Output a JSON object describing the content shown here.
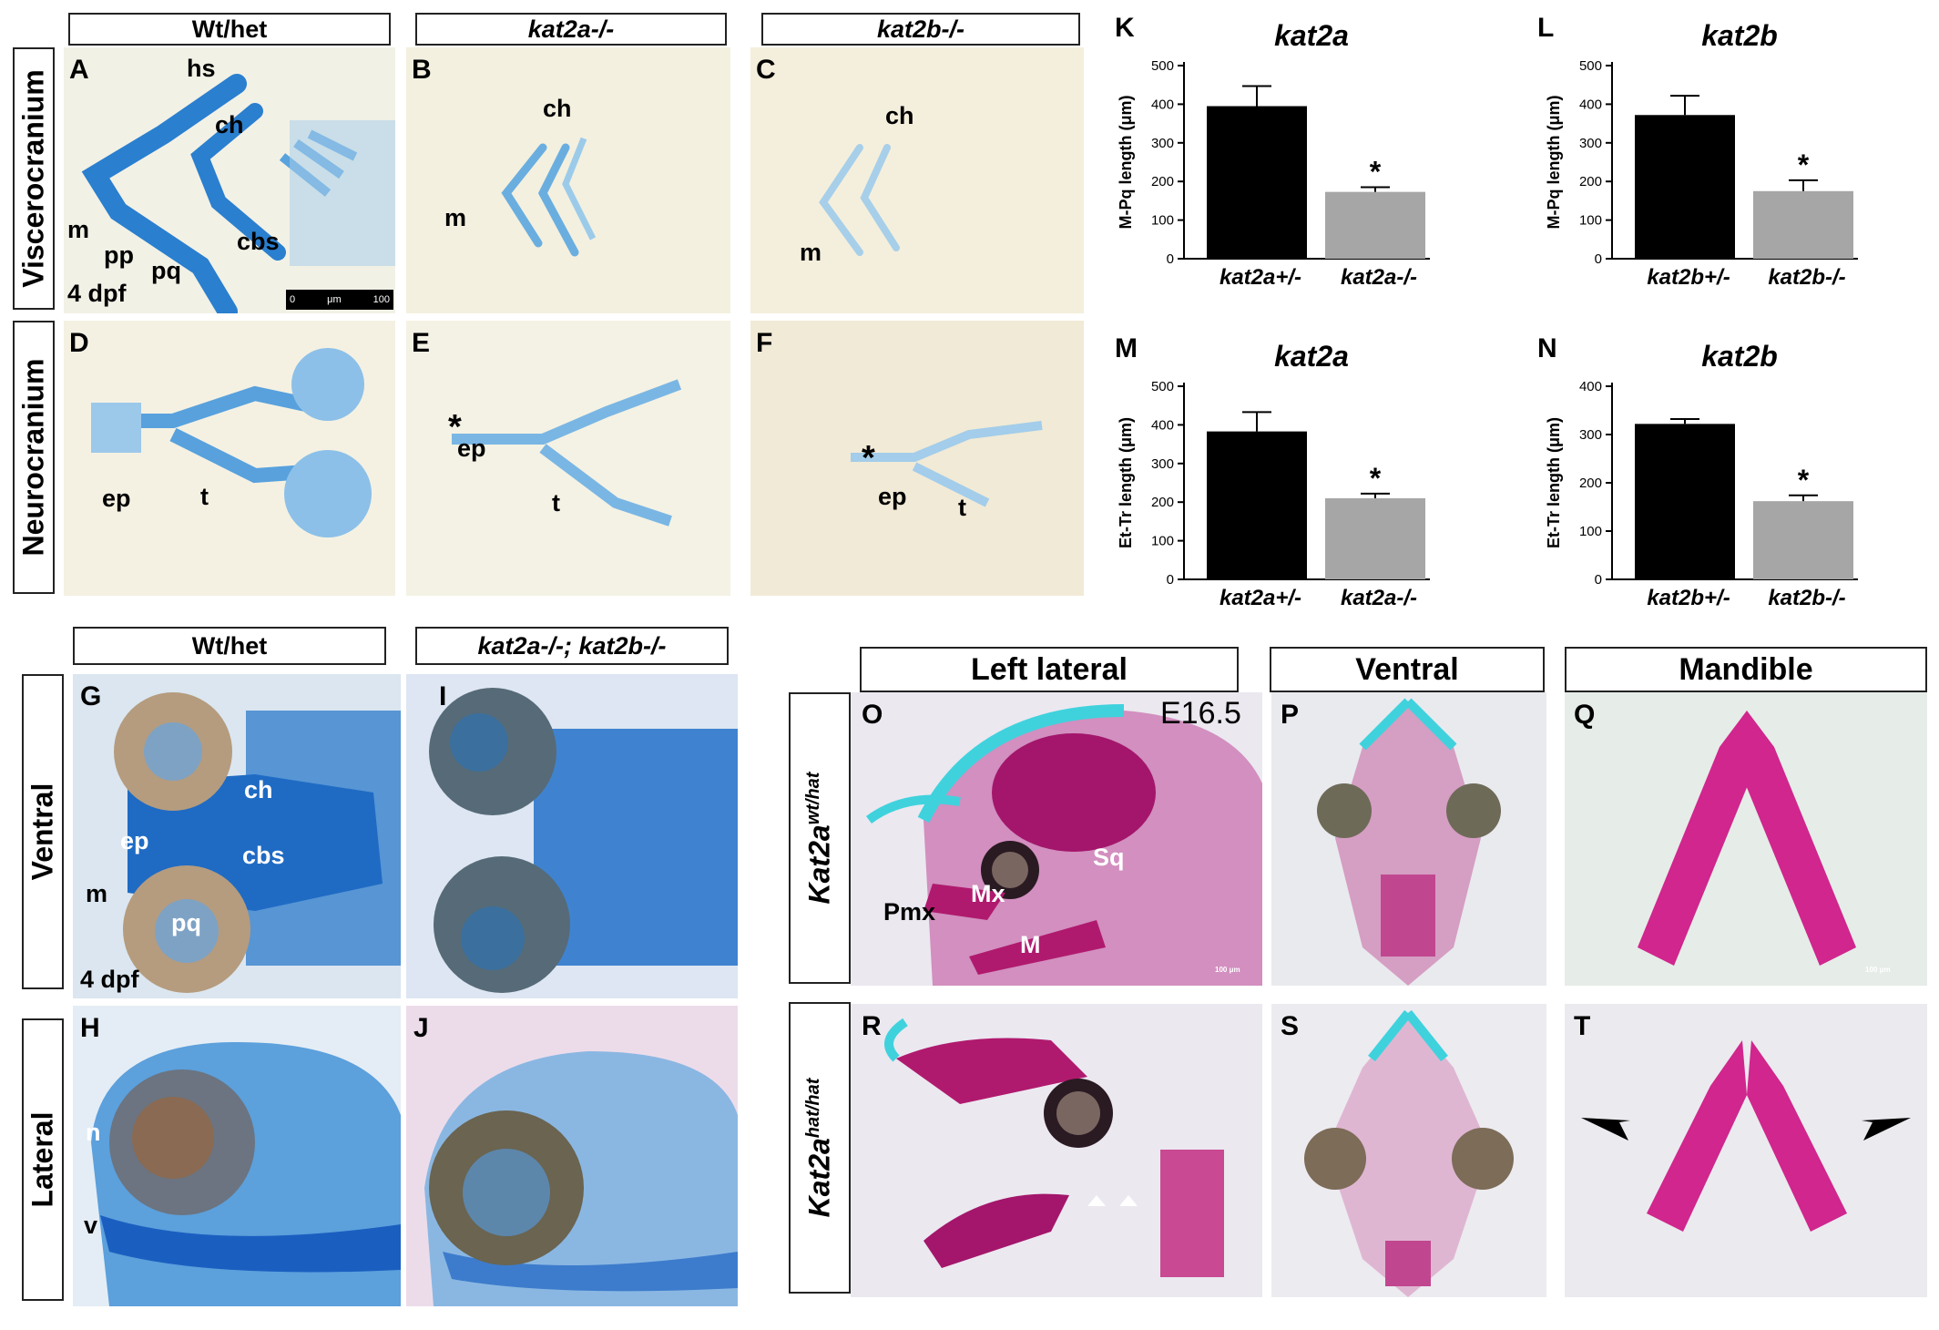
{
  "headers": {
    "wt_het_top": "Wt/het",
    "kat2a_top": "kat2a-/-",
    "kat2b_top": "kat2b-/-",
    "wt_het_mid": "Wt/het",
    "double_mutant": "kat2a-/-; kat2b-/-",
    "left_lateral": "Left lateral",
    "ventral_mouse": "Ventral",
    "mandible": "Mandible"
  },
  "row_labels": {
    "viscerocranium": "Viscerocranium",
    "neurocranium": "Neurocranium",
    "ventral": "Ventral",
    "lateral": "Lateral",
    "wt_prefix": "Kat2a",
    "wt_sup": "wt/hat",
    "mut_prefix": "Kat2a",
    "mut_sup": "hat/hat"
  },
  "panel_letters": {
    "A": "A",
    "B": "B",
    "C": "C",
    "D": "D",
    "E": "E",
    "F": "F",
    "G": "G",
    "H": "H",
    "I": "I",
    "J": "J",
    "K": "K",
    "L": "L",
    "M": "M",
    "N": "N",
    "O": "O",
    "P": "P",
    "Q": "Q",
    "R": "R",
    "S": "S",
    "T": "T"
  },
  "annotations": {
    "A_hs": "hs",
    "A_ch": "ch",
    "A_m": "m",
    "A_pp": "pp",
    "A_pq": "pq",
    "A_cbs": "cbs",
    "A_age": "4 dpf",
    "scale_0": "0",
    "scale_um": "μm",
    "scale_100": "100",
    "B_ch": "ch",
    "B_m": "m",
    "C_ch": "ch",
    "C_m": "m",
    "D_ep": "ep",
    "D_t": "t",
    "E_star": "*",
    "E_ep": "ep",
    "E_t": "t",
    "F_star": "*",
    "F_ep": "ep",
    "F_t": "t",
    "G_ch": "ch",
    "G_ep": "ep",
    "G_cbs": "cbs",
    "G_m": "m",
    "G_pq": "pq",
    "G_age": "4 dpf",
    "H_n": "n",
    "H_v": "v",
    "O_stage": "E16.5",
    "O_pmx": "Pmx",
    "O_mx": "Mx",
    "O_sq": "Sq",
    "O_M": "M",
    "O_scale": "100 μm",
    "Q_scale": "100 μm"
  },
  "colors": {
    "wt_bar": "#000000",
    "mut_bar": "#a6a6a6",
    "alcian_blue": "#2f86d0",
    "alizarin_red": "#c2307e",
    "zebrafish_bg": "#f1ecd8",
    "mouse_bg": "#ecebf0"
  },
  "chart_data": [
    {
      "id": "K",
      "type": "bar",
      "title": "kat2a",
      "categories": [
        "kat2a+/-",
        "kat2a-/-"
      ],
      "values": [
        395,
        173
      ],
      "errors": [
        52,
        12
      ],
      "ylabel": "M-Pq length (μm)",
      "ylim": [
        0,
        500
      ],
      "yticks": [
        0,
        100,
        200,
        300,
        400,
        500
      ],
      "significance": [
        "",
        "*"
      ]
    },
    {
      "id": "L",
      "type": "bar",
      "title": "kat2b",
      "categories": [
        "kat2b+/-",
        "kat2b-/-"
      ],
      "values": [
        372,
        175
      ],
      "errors": [
        50,
        28
      ],
      "ylabel": "M-Pq length (μm)",
      "ylim": [
        0,
        500
      ],
      "yticks": [
        0,
        100,
        200,
        300,
        400,
        500
      ],
      "significance": [
        "",
        "*"
      ]
    },
    {
      "id": "M",
      "type": "bar",
      "title": "kat2a",
      "categories": [
        "kat2a+/-",
        "kat2a-/-"
      ],
      "values": [
        383,
        210
      ],
      "errors": [
        50,
        12
      ],
      "ylabel": "Et-Tr length (μm)",
      "ylim": [
        0,
        500
      ],
      "yticks": [
        0,
        100,
        200,
        300,
        400,
        500
      ],
      "significance": [
        "",
        "*"
      ]
    },
    {
      "id": "N",
      "type": "bar",
      "title": "kat2b",
      "categories": [
        "kat2b+/-",
        "kat2b-/-"
      ],
      "values": [
        322,
        162
      ],
      "errors": [
        10,
        12
      ],
      "ylabel": "Et-Tr length (μm)",
      "ylim": [
        0,
        400
      ],
      "yticks": [
        0,
        100,
        200,
        300,
        400
      ],
      "significance": [
        "",
        "*"
      ]
    }
  ]
}
